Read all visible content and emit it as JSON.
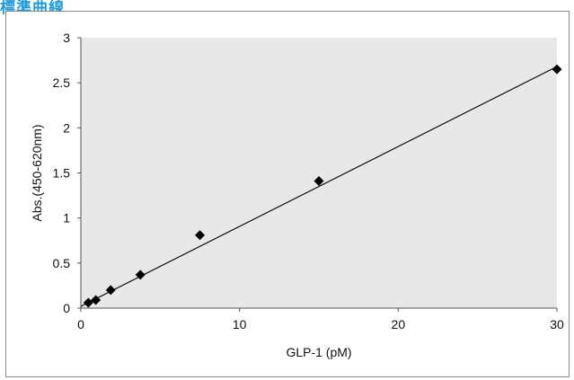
{
  "heading": "標準曲線",
  "chart_data": {
    "type": "scatter",
    "xlabel": "GLP-1 (pM)",
    "ylabel": "Abs.(450-620nm)",
    "xlim": [
      0,
      30
    ],
    "ylim": [
      0,
      3
    ],
    "xticks": [
      "0",
      "10",
      "20",
      "30"
    ],
    "yticks": [
      "0",
      "0.5",
      "1",
      "1.5",
      "2",
      "2.5",
      "3"
    ],
    "grid": false,
    "plot_background": "#e8e8e8",
    "marker_color": "#000000",
    "series": [
      {
        "marker": "diamond",
        "x": [
          0.47,
          0.94,
          1.88,
          3.75,
          7.5,
          15,
          30
        ],
        "y": [
          0.06,
          0.09,
          0.2,
          0.37,
          0.81,
          1.41,
          2.65
        ]
      }
    ],
    "trendline": {
      "type": "linear",
      "x": [
        0,
        30
      ],
      "y": [
        0.02,
        2.68
      ]
    }
  }
}
